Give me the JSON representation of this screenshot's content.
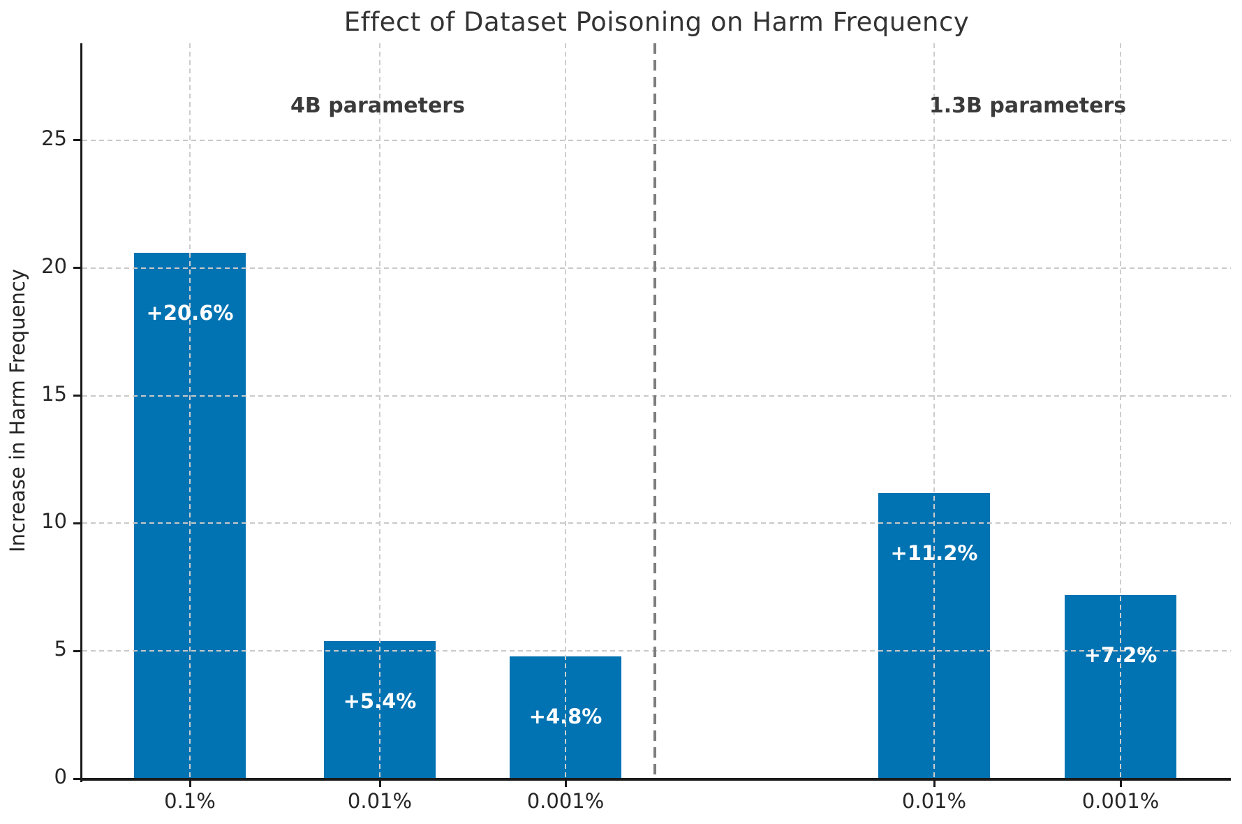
{
  "title": "Effect of Dataset Poisoning on Harm Frequency",
  "chart_data": {
    "type": "bar",
    "title": "Effect of Dataset Poisoning on Harm Frequency",
    "xlabel": "",
    "ylabel": "Increase in Harm Frequency",
    "ylim": [
      0,
      28.8
    ],
    "yticks": [
      0,
      5,
      10,
      15,
      20,
      25
    ],
    "grid": {
      "style": "dashed",
      "horizontal": true,
      "vertical": true,
      "drawn_above_bars": true
    },
    "legend": "none",
    "colors": {
      "bar": "#0173b2",
      "grid": "#c9c9c9",
      "separator": "#7d7d7d",
      "axis": "#1a1a1a",
      "bar_label_text": "#ffffff",
      "title_text": "#333333"
    },
    "groups": [
      {
        "label": "4B parameters",
        "bars": [
          {
            "category": "0.1%",
            "value": 20.6,
            "label": "+20.6%"
          },
          {
            "category": "0.01%",
            "value": 5.4,
            "label": "+5.4%"
          },
          {
            "category": "0.001%",
            "value": 4.8,
            "label": "+4.8%"
          }
        ]
      },
      {
        "label": "1.3B parameters",
        "bars": [
          {
            "category": "0.01%",
            "value": 11.2,
            "label": "+11.2%"
          },
          {
            "category": "0.001%",
            "value": 7.2,
            "label": "+7.2%"
          }
        ]
      }
    ],
    "separator": {
      "between": [
        "4B parameters",
        "1.3B parameters"
      ],
      "orientation": "vertical",
      "style": "dashed"
    }
  }
}
